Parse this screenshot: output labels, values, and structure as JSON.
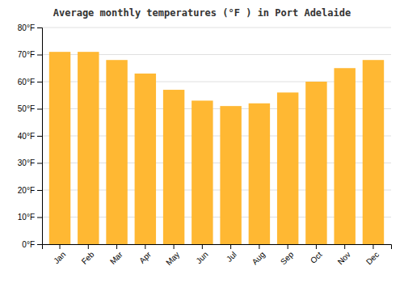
{
  "chart_data": {
    "type": "bar",
    "title": "Average monthly temperatures (°F ) in Port Adelaide",
    "categories": [
      "Jan",
      "Feb",
      "Mar",
      "Apr",
      "May",
      "Jun",
      "Jul",
      "Aug",
      "Sep",
      "Oct",
      "Nov",
      "Dec"
    ],
    "values": [
      71,
      71,
      68,
      63,
      57,
      53,
      51,
      52,
      56,
      60,
      65,
      68
    ],
    "color": "#FFB833",
    "ylim": [
      0,
      80
    ],
    "yticks": [
      {
        "value": 0,
        "label": "0°F"
      },
      {
        "value": 10,
        "label": "10°F"
      },
      {
        "value": 20,
        "label": "20°F"
      },
      {
        "value": 30,
        "label": "30°F"
      },
      {
        "value": 40,
        "label": "40°F"
      },
      {
        "value": 50,
        "label": "50°F"
      },
      {
        "value": 60,
        "label": "60°F"
      },
      {
        "value": 70,
        "label": "70°F"
      },
      {
        "value": 80,
        "label": "80°F"
      }
    ],
    "grid": true
  }
}
